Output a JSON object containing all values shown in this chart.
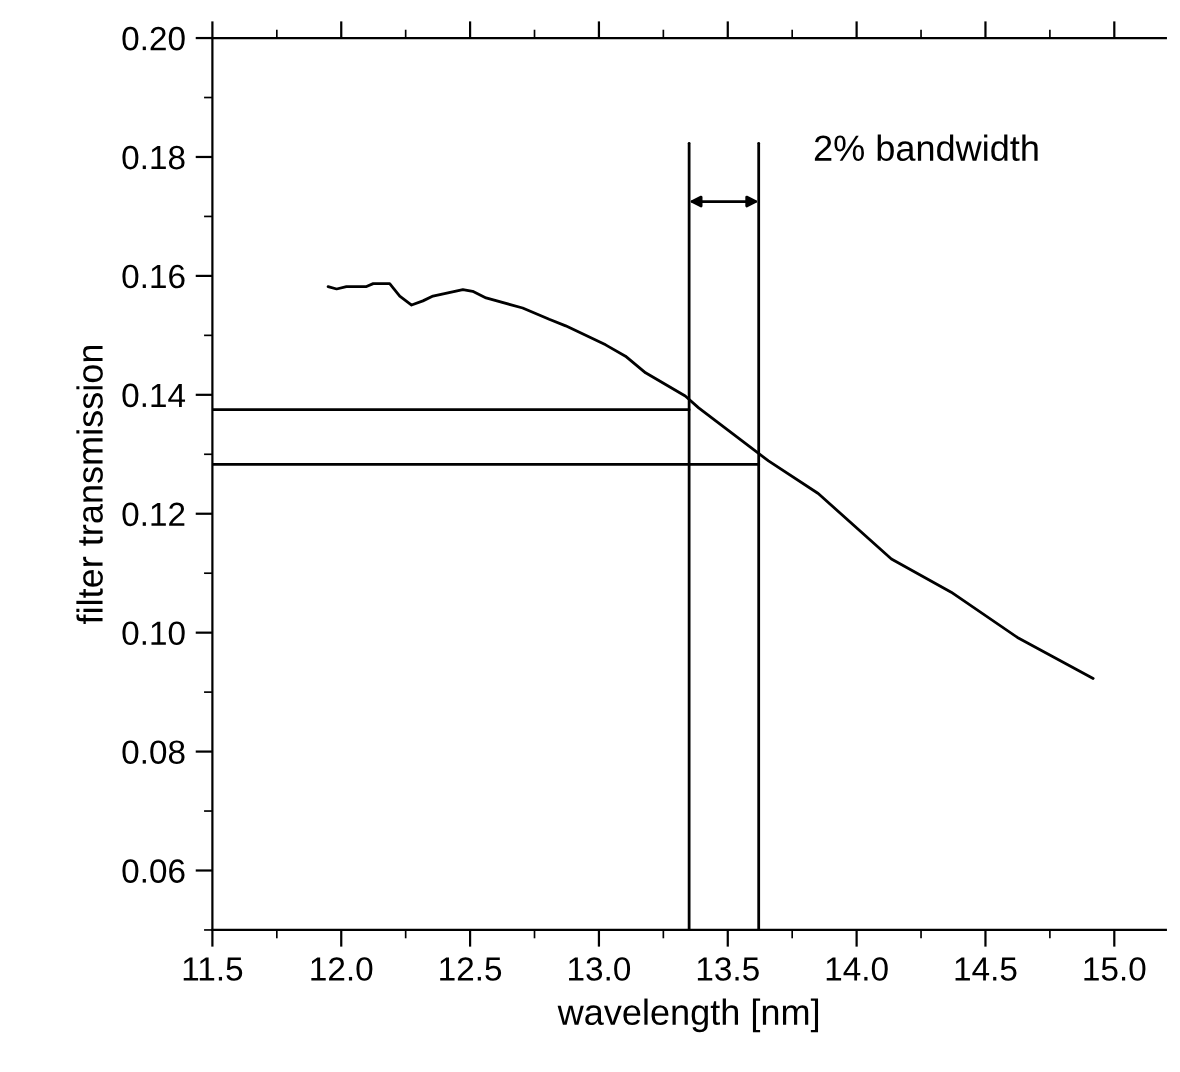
{
  "chart_data": {
    "type": "line",
    "xlabel": "wavelength [nm]",
    "ylabel": "filter transmission",
    "xlim": [
      11.5,
      15.2
    ],
    "ylim": [
      0.05,
      0.2
    ],
    "xticks": [
      {
        "value": 11.5,
        "label": "11.5"
      },
      {
        "value": 12.0,
        "label": "12.0"
      },
      {
        "value": 12.5,
        "label": "12.5"
      },
      {
        "value": 13.0,
        "label": "13.0"
      },
      {
        "value": 13.5,
        "label": "13.5"
      },
      {
        "value": 14.0,
        "label": "14.0"
      },
      {
        "value": 14.5,
        "label": "14.5"
      },
      {
        "value": 15.0,
        "label": "15.0"
      }
    ],
    "yticks": [
      {
        "value": 0.06,
        "label": "0.06"
      },
      {
        "value": 0.08,
        "label": "0.08"
      },
      {
        "value": 0.1,
        "label": "0.10"
      },
      {
        "value": 0.12,
        "label": "0.12"
      },
      {
        "value": 0.14,
        "label": "0.14"
      },
      {
        "value": 0.16,
        "label": "0.16"
      },
      {
        "value": 0.18,
        "label": "0.18"
      },
      {
        "value": 0.2,
        "label": "0.20"
      }
    ],
    "grid": false,
    "legend": false,
    "marker": "none",
    "line_style": "solid",
    "series": [
      {
        "color": "#000000",
        "x": [
          11.949,
          11.982,
          12.02,
          12.098,
          12.124,
          12.188,
          12.227,
          12.273,
          12.317,
          12.356,
          12.472,
          12.51,
          12.562,
          12.704,
          12.807,
          12.871,
          13.026,
          13.103,
          13.181,
          13.335,
          13.387,
          13.658,
          13.851,
          14.135,
          14.367,
          14.624,
          14.918
        ],
        "values": [
          0.1582,
          0.1578,
          0.1582,
          0.1582,
          0.1587,
          0.1587,
          0.1566,
          0.1551,
          0.1558,
          0.1566,
          0.1577,
          0.1574,
          0.1563,
          0.1546,
          0.1527,
          0.1516,
          0.1484,
          0.1465,
          0.1437,
          0.1398,
          0.1378,
          0.1289,
          0.1234,
          0.1124,
          0.1068,
          0.0992,
          0.0923
        ]
      },
      {
        "color": "#000000",
        "x": [
          11.5,
          13.35
        ],
        "values": [
          0.1375,
          0.1375
        ]
      },
      {
        "color": "#000000",
        "x": [
          11.5,
          13.62
        ],
        "values": [
          0.1283,
          0.1283
        ]
      },
      {
        "color": "#000000",
        "x": [
          13.35,
          13.35
        ],
        "values": [
          0.05,
          0.1823
        ]
      },
      {
        "color": "#000000",
        "x": [
          13.62,
          13.62
        ],
        "values": [
          0.05,
          0.1823
        ]
      }
    ],
    "annotations": [
      "2% bandwidth"
    ]
  }
}
